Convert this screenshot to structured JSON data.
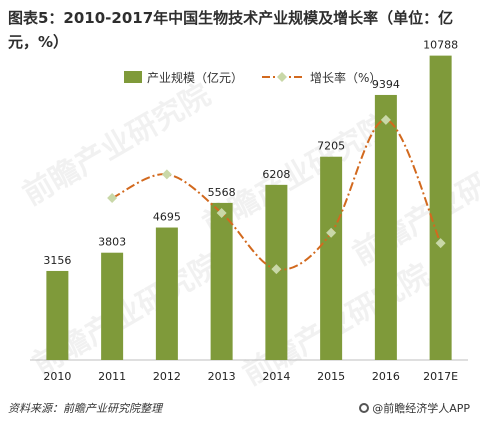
{
  "page": {
    "title": "图表5：2010-2017年中国生物技术产业规模及增长率（单位：亿元，%）",
    "source": "资料来源：前瞻产业研究院整理",
    "brand": "@前瞻经济学人APP",
    "watermark": "前瞻产业研究院"
  },
  "colors": {
    "bar": "#7f9a3a",
    "line": "#d2691e",
    "marker": "#c9d8a8",
    "axis": "#bfbfbf"
  },
  "chart_data": {
    "type": "bar",
    "categories": [
      "2010",
      "2011",
      "2012",
      "2013",
      "2014",
      "2015",
      "2016",
      "2017E"
    ],
    "series": [
      {
        "name": "产业规模（亿元）",
        "type": "bar",
        "values": [
          3156,
          3803,
          4695,
          5568,
          6208,
          7205,
          9394,
          10788
        ]
      },
      {
        "name": "增长率（%）",
        "type": "line",
        "axis": "secondary",
        "values": [
          null,
          20.5,
          23.5,
          18.6,
          11.5,
          16.1,
          30.4,
          14.8
        ]
      }
    ],
    "ylim": [
      0,
      11200
    ],
    "y2lim": [
      0,
      40
    ],
    "data_labels": true,
    "legend": "top"
  }
}
